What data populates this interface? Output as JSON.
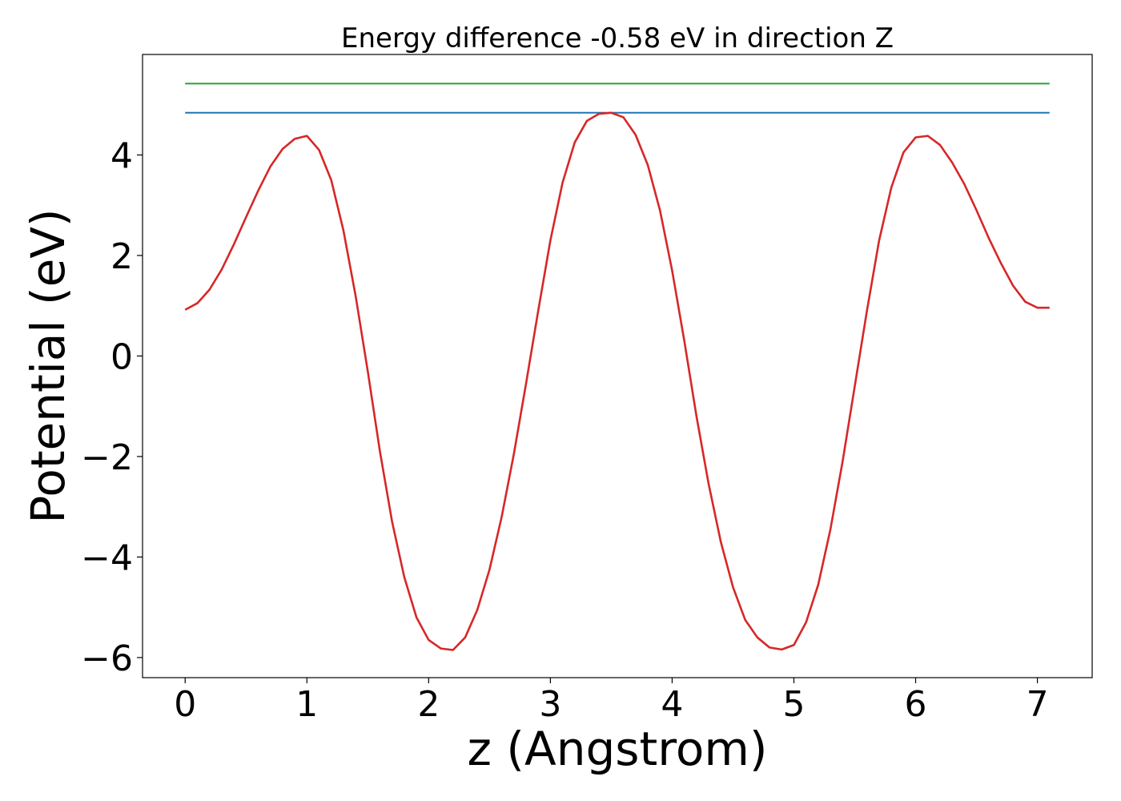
{
  "chart_data": {
    "type": "line",
    "title": "Energy difference -0.58 eV in direction Z",
    "xlabel": "z (Angstrom)",
    "ylabel": "Potential (eV)",
    "xlim": [
      -0.35,
      7.45
    ],
    "ylim": [
      -6.4,
      6.0
    ],
    "xticks": [
      0,
      1,
      2,
      3,
      4,
      5,
      6,
      7
    ],
    "xtick_labels": [
      "0",
      "1",
      "2",
      "3",
      "4",
      "5",
      "6",
      "7"
    ],
    "yticks": [
      -6,
      -4,
      -2,
      0,
      2,
      4
    ],
    "ytick_labels": [
      "−6",
      "−4",
      "−2",
      "0",
      "2",
      "4"
    ],
    "grid": false,
    "series": [
      {
        "color": "#2ca02c",
        "x": [
          0,
          7.1
        ],
        "y": [
          5.42,
          5.42
        ]
      },
      {
        "color": "#1f77b4",
        "x": [
          0,
          7.1
        ],
        "y": [
          4.84,
          4.84
        ]
      },
      {
        "color": "#d62728",
        "x": [
          0.0,
          0.1,
          0.2,
          0.3,
          0.4,
          0.5,
          0.6,
          0.7,
          0.8,
          0.9,
          1.0,
          1.1,
          1.2,
          1.3,
          1.4,
          1.5,
          1.6,
          1.7,
          1.8,
          1.9,
          2.0,
          2.1,
          2.2,
          2.3,
          2.4,
          2.5,
          2.6,
          2.7,
          2.8,
          2.9,
          3.0,
          3.1,
          3.2,
          3.3,
          3.4,
          3.5,
          3.6,
          3.7,
          3.8,
          3.9,
          4.0,
          4.1,
          4.2,
          4.3,
          4.4,
          4.5,
          4.6,
          4.7,
          4.8,
          4.9,
          5.0,
          5.1,
          5.2,
          5.3,
          5.4,
          5.5,
          5.6,
          5.7,
          5.8,
          5.9,
          6.0,
          6.1,
          6.2,
          6.3,
          6.4,
          6.5,
          6.6,
          6.7,
          6.8,
          6.9,
          7.0,
          7.1
        ],
        "y": [
          0.92,
          1.05,
          1.32,
          1.72,
          2.22,
          2.76,
          3.29,
          3.77,
          4.12,
          4.32,
          4.38,
          4.1,
          3.5,
          2.5,
          1.2,
          -0.3,
          -1.9,
          -3.3,
          -4.4,
          -5.2,
          -5.65,
          -5.82,
          -5.85,
          -5.6,
          -5.05,
          -4.25,
          -3.2,
          -1.95,
          -0.55,
          0.9,
          2.3,
          3.45,
          4.25,
          4.68,
          4.82,
          4.84,
          4.75,
          4.4,
          3.8,
          2.9,
          1.7,
          0.3,
          -1.2,
          -2.55,
          -3.7,
          -4.6,
          -5.25,
          -5.6,
          -5.8,
          -5.84,
          -5.75,
          -5.3,
          -4.55,
          -3.45,
          -2.1,
          -0.6,
          0.9,
          2.3,
          3.35,
          4.05,
          4.35,
          4.38,
          4.2,
          3.85,
          3.42,
          2.9,
          2.35,
          1.85,
          1.4,
          1.08,
          0.96,
          0.96
        ]
      }
    ]
  }
}
